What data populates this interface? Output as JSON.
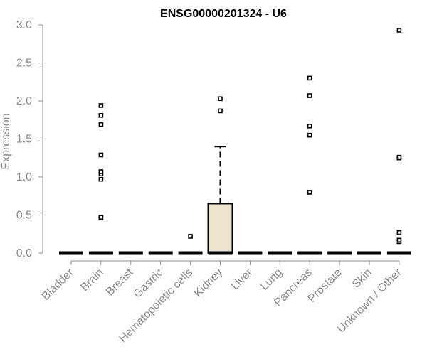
{
  "chart_data": {
    "type": "boxplot",
    "title": "ENSG00000201324 - U6",
    "xlabel": "",
    "ylabel": "Expression",
    "ylim": [
      0,
      3.0
    ],
    "yticks": [
      "0.0",
      "0.5",
      "1.0",
      "1.5",
      "2.0",
      "2.5",
      "3.0"
    ],
    "categories": [
      "Bladder",
      "Brain",
      "Breast",
      "Gastric",
      "Hematopoietic cells",
      "Kidney",
      "Liver",
      "Lung",
      "Pancreas",
      "Prostate",
      "Skin",
      "Unknown / Other"
    ],
    "boxes": [
      {
        "category": "Bladder",
        "q1": 0,
        "median": 0,
        "q3": 0,
        "whisker_low": 0,
        "whisker_high": 0,
        "outliers": []
      },
      {
        "category": "Brain",
        "q1": 0,
        "median": 0,
        "q3": 0,
        "whisker_low": 0,
        "whisker_high": 0,
        "outliers": [
          0.46,
          0.47,
          0.97,
          1.04,
          1.07,
          1.29,
          1.69,
          1.81,
          1.94
        ]
      },
      {
        "category": "Breast",
        "q1": 0,
        "median": 0,
        "q3": 0,
        "whisker_low": 0,
        "whisker_high": 0,
        "outliers": []
      },
      {
        "category": "Gastric",
        "q1": 0,
        "median": 0,
        "q3": 0,
        "whisker_low": 0,
        "whisker_high": 0,
        "outliers": []
      },
      {
        "category": "Hematopoietic cells",
        "q1": 0,
        "median": 0,
        "q3": 0,
        "whisker_low": 0,
        "whisker_high": 0,
        "outliers": [
          0.22
        ]
      },
      {
        "category": "Kidney",
        "q1": 0,
        "median": 0,
        "q3": 0.65,
        "whisker_low": 0,
        "whisker_high": 1.4,
        "outliers": [
          1.87,
          2.03
        ]
      },
      {
        "category": "Liver",
        "q1": 0,
        "median": 0,
        "q3": 0,
        "whisker_low": 0,
        "whisker_high": 0,
        "outliers": []
      },
      {
        "category": "Lung",
        "q1": 0,
        "median": 0,
        "q3": 0,
        "whisker_low": 0,
        "whisker_high": 0,
        "outliers": []
      },
      {
        "category": "Pancreas",
        "q1": 0,
        "median": 0,
        "q3": 0,
        "whisker_low": 0,
        "whisker_high": 0,
        "outliers": [
          0.8,
          1.55,
          1.67,
          2.07,
          2.3
        ]
      },
      {
        "category": "Prostate",
        "q1": 0,
        "median": 0,
        "q3": 0,
        "whisker_low": 0,
        "whisker_high": 0,
        "outliers": []
      },
      {
        "category": "Skin",
        "q1": 0,
        "median": 0,
        "q3": 0,
        "whisker_low": 0,
        "whisker_high": 0,
        "outliers": []
      },
      {
        "category": "Unknown / Other",
        "q1": 0,
        "median": 0,
        "q3": 0,
        "whisker_low": 0,
        "whisker_high": 0,
        "outliers": [
          0.15,
          0.17,
          0.27,
          1.25,
          1.26,
          2.93
        ]
      }
    ],
    "colors": {
      "box_fill": "#ede6cc",
      "line": "#000000",
      "axis": "#8c8c8c"
    },
    "grid": false
  }
}
